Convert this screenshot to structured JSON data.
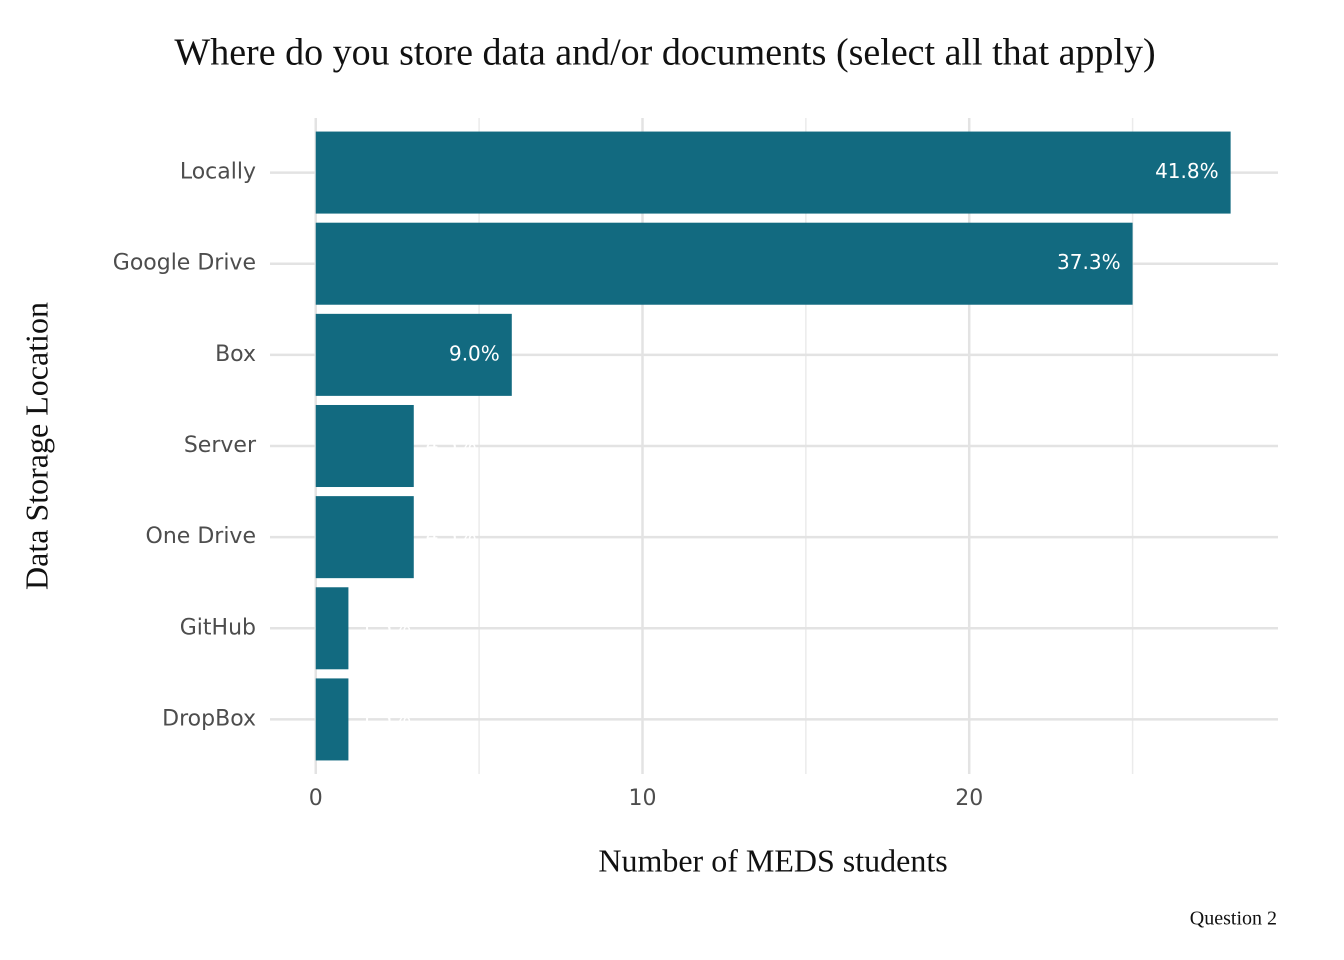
{
  "chart_data": {
    "type": "hbar",
    "title": "Where do you store data and/or documents (select all that apply)",
    "x_label": "Number of MEDS students",
    "y_label": "Data Storage Location",
    "caption": "Question 2",
    "categories": [
      "Locally",
      "Google Drive",
      "Box",
      "Server",
      "One Drive",
      "GitHub",
      "DropBox"
    ],
    "values": [
      28,
      25,
      6,
      3,
      3,
      1,
      1
    ],
    "value_labels": [
      "41.8%",
      "37.3%",
      "9.0%",
      "4.5%",
      "4.5%",
      "1.5%",
      "1.5%"
    ],
    "color": "#126a80",
    "xlim": [
      -1.4,
      29.45
    ],
    "xticks": [
      0,
      10,
      20
    ],
    "xminor": [
      5,
      15,
      25
    ],
    "grid": true
  }
}
